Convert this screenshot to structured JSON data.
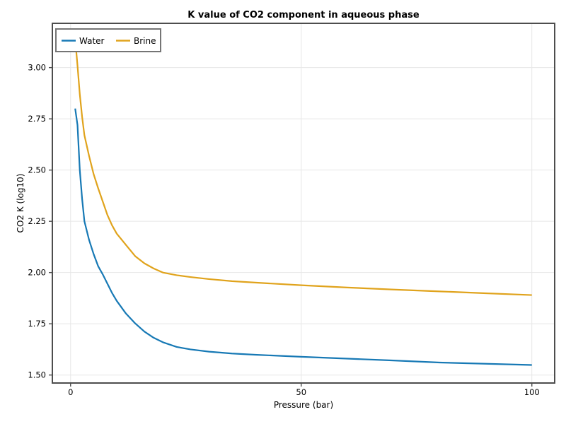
{
  "chart_data": {
    "type": "line",
    "title": "K value of CO2 component in aqueous phase",
    "xlabel": "Pressure (bar)",
    "ylabel": "CO2 K  (log10)",
    "grid": true,
    "legend_position": "upper left",
    "xlim": [
      -3.95,
      104.95
    ],
    "ylim": [
      1.461,
      3.216
    ],
    "xticks": [
      {
        "v": 0,
        "label": "0"
      },
      {
        "v": 50,
        "label": "50"
      },
      {
        "v": 100,
        "label": "100"
      }
    ],
    "yticks": [
      {
        "v": 1.5,
        "label": "1.50"
      },
      {
        "v": 1.75,
        "label": "1.75"
      },
      {
        "v": 2.0,
        "label": "2.00"
      },
      {
        "v": 2.25,
        "label": "2.25"
      },
      {
        "v": 2.5,
        "label": "2.50"
      },
      {
        "v": 2.75,
        "label": "2.75"
      },
      {
        "v": 3.0,
        "label": "3.00"
      }
    ],
    "x": [
      1,
      1.5,
      2,
      2.5,
      3,
      4,
      5,
      6,
      7,
      8,
      9,
      10,
      12,
      14,
      16,
      18,
      20,
      23,
      26,
      30,
      35,
      40,
      50,
      60,
      70,
      80,
      90,
      100
    ],
    "series": [
      {
        "name": "Water",
        "color": "#1779b5",
        "values": [
          2.8,
          2.72,
          2.5,
          2.36,
          2.25,
          2.16,
          2.09,
          2.03,
          1.99,
          1.945,
          1.9,
          1.862,
          1.8,
          1.752,
          1.712,
          1.682,
          1.66,
          1.637,
          1.625,
          1.614,
          1.605,
          1.599,
          1.589,
          1.58,
          1.571,
          1.561,
          1.555,
          1.549
        ]
      },
      {
        "name": "Brine",
        "color": "#e0a31c",
        "values": [
          3.14,
          3.01,
          2.87,
          2.76,
          2.67,
          2.57,
          2.48,
          2.41,
          2.345,
          2.28,
          2.23,
          2.19,
          2.135,
          2.08,
          2.045,
          2.02,
          2.0,
          1.987,
          1.978,
          1.968,
          1.958,
          1.951,
          1.938,
          1.927,
          1.917,
          1.908,
          1.899,
          1.89
        ]
      }
    ],
    "colors": {
      "background": "#ffffff",
      "spine": "#4d4d4d",
      "grid": "#e7e7e7",
      "text": "#000000",
      "legend_border": "#757575"
    }
  }
}
